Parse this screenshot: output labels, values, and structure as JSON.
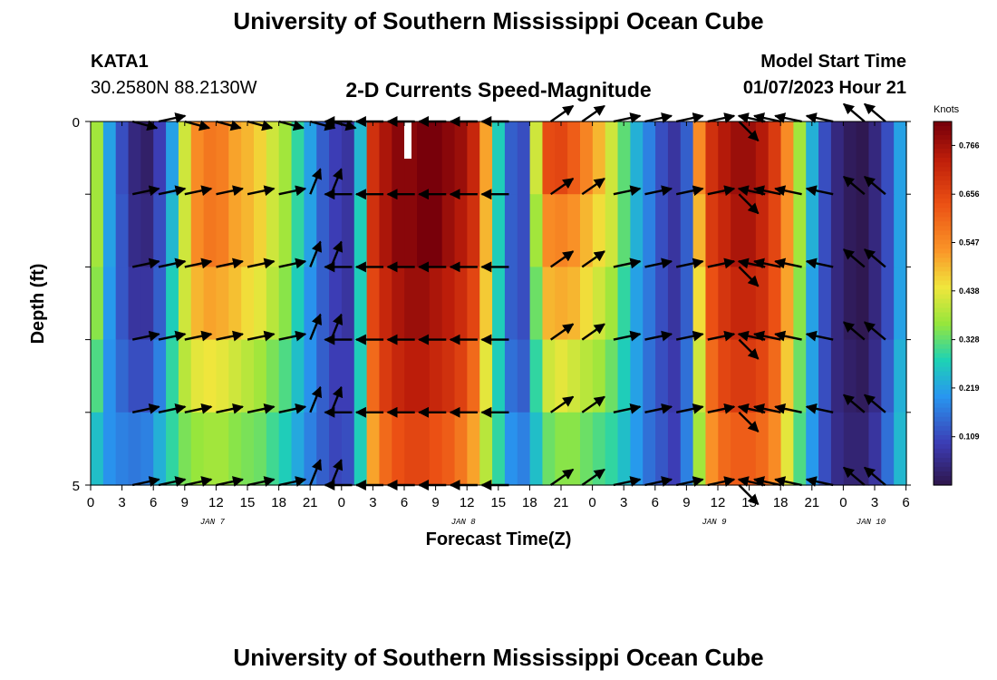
{
  "header": {
    "title": "University of Southern Mississippi Ocean Cube",
    "station_id": "KATA1",
    "station_coords": "30.2580N  88.2130W",
    "subtitle": "2-D Currents Speed-Magnitude",
    "model_start_label": "Model Start Time",
    "model_start_value": "01/07/2023 Hour 21"
  },
  "footer": {
    "title": "University of Southern Mississippi Ocean Cube"
  },
  "chart_data": {
    "type": "heatmap",
    "title": "2-D Currents Speed-Magnitude",
    "xlabel": "Forecast Time(Z)",
    "ylabel": "Depth (ft)",
    "x_tick_labels": [
      "0",
      "3",
      "6",
      "9",
      "12",
      "15",
      "18",
      "21",
      "0",
      "3",
      "6",
      "9",
      "12",
      "15",
      "18",
      "21",
      "0",
      "3",
      "6",
      "9",
      "12",
      "15",
      "18",
      "21",
      "0",
      "3",
      "6"
    ],
    "day_labels": [
      {
        "label": "JAN 7",
        "tick_index": 4
      },
      {
        "label": "JAN 8",
        "tick_index": 12
      },
      {
        "label": "JAN 9",
        "tick_index": 20
      },
      {
        "label": "JAN 10",
        "tick_index": 25
      }
    ],
    "y_tick_labels": [
      "0",
      "5"
    ],
    "ylim": [
      0,
      5
    ],
    "xlim_hours": [
      0,
      78
    ],
    "colorbar": {
      "label": "Knots",
      "ticks": [
        "0.766",
        "0.656",
        "0.547",
        "0.438",
        "0.328",
        "0.219",
        "0.109"
      ],
      "range": [
        0,
        0.82
      ]
    },
    "depth_rows": 5,
    "speed_knots": [
      [
        0.38,
        0.22,
        0.12,
        0.05,
        0.03,
        0.1,
        0.22,
        0.42,
        0.55,
        0.58,
        0.57,
        0.52,
        0.5,
        0.47,
        0.42,
        0.38,
        0.3,
        0.22,
        0.14,
        0.1,
        0.08,
        0.25,
        0.7,
        0.76,
        0.8,
        0.8,
        0.82,
        0.82,
        0.8,
        0.78,
        0.72,
        0.52,
        0.28,
        0.14,
        0.12,
        0.42,
        0.65,
        0.66,
        0.62,
        0.56,
        0.5,
        0.42,
        0.33,
        0.24,
        0.18,
        0.12,
        0.08,
        0.14,
        0.55,
        0.7,
        0.75,
        0.78,
        0.78,
        0.75,
        0.68,
        0.55,
        0.38,
        0.24,
        0.12,
        0.05,
        0.02,
        0.01,
        0.05,
        0.12,
        0.22
      ],
      [
        0.38,
        0.22,
        0.13,
        0.06,
        0.05,
        0.12,
        0.25,
        0.42,
        0.55,
        0.58,
        0.57,
        0.52,
        0.5,
        0.47,
        0.42,
        0.38,
        0.3,
        0.22,
        0.14,
        0.1,
        0.08,
        0.28,
        0.7,
        0.76,
        0.8,
        0.8,
        0.82,
        0.82,
        0.78,
        0.75,
        0.7,
        0.5,
        0.28,
        0.14,
        0.12,
        0.38,
        0.55,
        0.56,
        0.54,
        0.5,
        0.46,
        0.42,
        0.33,
        0.24,
        0.18,
        0.12,
        0.08,
        0.14,
        0.5,
        0.68,
        0.72,
        0.76,
        0.76,
        0.72,
        0.66,
        0.54,
        0.38,
        0.24,
        0.12,
        0.05,
        0.02,
        0.01,
        0.05,
        0.12,
        0.22
      ],
      [
        0.36,
        0.21,
        0.13,
        0.08,
        0.08,
        0.14,
        0.28,
        0.42,
        0.5,
        0.52,
        0.51,
        0.49,
        0.46,
        0.44,
        0.4,
        0.36,
        0.28,
        0.2,
        0.14,
        0.1,
        0.08,
        0.28,
        0.66,
        0.72,
        0.76,
        0.78,
        0.78,
        0.76,
        0.74,
        0.71,
        0.66,
        0.48,
        0.28,
        0.14,
        0.12,
        0.34,
        0.5,
        0.51,
        0.5,
        0.46,
        0.42,
        0.38,
        0.3,
        0.22,
        0.17,
        0.12,
        0.08,
        0.14,
        0.46,
        0.64,
        0.69,
        0.72,
        0.72,
        0.7,
        0.64,
        0.52,
        0.36,
        0.22,
        0.12,
        0.05,
        0.02,
        0.01,
        0.05,
        0.12,
        0.22
      ],
      [
        0.32,
        0.2,
        0.15,
        0.12,
        0.12,
        0.18,
        0.3,
        0.4,
        0.44,
        0.45,
        0.44,
        0.42,
        0.4,
        0.38,
        0.35,
        0.32,
        0.26,
        0.2,
        0.14,
        0.1,
        0.1,
        0.28,
        0.6,
        0.68,
        0.72,
        0.74,
        0.74,
        0.72,
        0.7,
        0.67,
        0.6,
        0.44,
        0.28,
        0.16,
        0.14,
        0.3,
        0.42,
        0.44,
        0.42,
        0.4,
        0.38,
        0.34,
        0.28,
        0.22,
        0.16,
        0.12,
        0.09,
        0.16,
        0.42,
        0.6,
        0.66,
        0.68,
        0.68,
        0.66,
        0.6,
        0.48,
        0.34,
        0.22,
        0.12,
        0.05,
        0.03,
        0.02,
        0.06,
        0.14,
        0.24
      ],
      [
        0.26,
        0.2,
        0.18,
        0.17,
        0.18,
        0.24,
        0.3,
        0.35,
        0.37,
        0.38,
        0.38,
        0.36,
        0.35,
        0.34,
        0.31,
        0.28,
        0.23,
        0.18,
        0.14,
        0.11,
        0.12,
        0.28,
        0.52,
        0.6,
        0.64,
        0.66,
        0.66,
        0.64,
        0.62,
        0.58,
        0.52,
        0.4,
        0.3,
        0.2,
        0.18,
        0.26,
        0.34,
        0.36,
        0.36,
        0.34,
        0.32,
        0.3,
        0.26,
        0.21,
        0.16,
        0.13,
        0.1,
        0.18,
        0.38,
        0.54,
        0.6,
        0.62,
        0.62,
        0.6,
        0.55,
        0.44,
        0.32,
        0.21,
        0.12,
        0.06,
        0.04,
        0.04,
        0.08,
        0.16,
        0.25
      ]
    ],
    "vector_columns_hours": [
      4,
      6.5,
      9,
      12,
      15,
      18,
      21,
      23,
      25,
      28,
      31,
      34,
      37,
      40,
      44,
      47,
      50,
      53,
      56,
      59,
      62,
      64.5,
      66,
      68,
      71,
      74,
      76
    ],
    "vector_rows": [
      "0",
      "1",
      "2",
      "3",
      "4",
      "5"
    ]
  }
}
